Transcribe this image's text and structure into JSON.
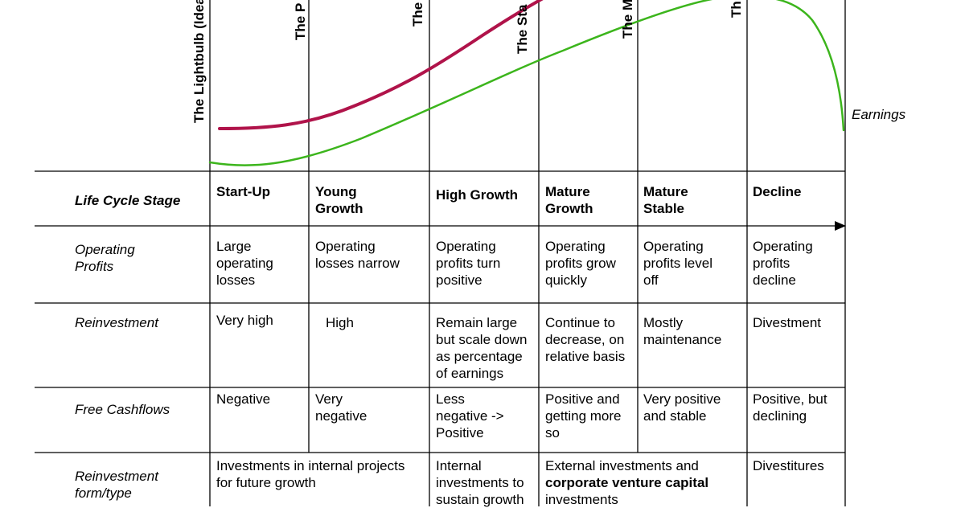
{
  "curves": {
    "earnings_label": "Earnings",
    "revenue_color": "#b0134a",
    "earnings_color": "#3cb51c"
  },
  "stage_labels": [
    "The Lightbulb (Idea)",
    "The P",
    "The",
    "The Sta",
    "The M",
    "Th"
  ],
  "table": {
    "header": {
      "label": "Life Cycle Stage",
      "stages": [
        "Start-Up",
        "Young\nGrowth",
        "High Growth",
        "Mature\nGrowth",
        "Mature\nStable",
        "Decline"
      ]
    },
    "rows": [
      {
        "label": "Operating\nProfits",
        "cells": [
          "Large\noperating\nlosses",
          "Operating\nlosses narrow",
          "Operating\nprofits turn\npositive",
          "Operating\nprofits grow\nquickly",
          "Operating\nprofits level\noff",
          "Operating\nprofits\ndecline"
        ]
      },
      {
        "label": "Reinvestment",
        "cells": [
          "Very high",
          "High",
          "Remain large\nbut scale down\nas percentage\nof earnings",
          "Continue to\ndecrease, on\nrelative basis",
          "Mostly\nmaintenance",
          "Divestment"
        ]
      },
      {
        "label": "Free Cashflows",
        "cells": [
          "Negative",
          "Very\nnegative",
          "Less\nnegative ->\nPositive",
          "Positive and\ngetting more\nso",
          "Very positive\nand stable",
          "Positive, but\ndeclining"
        ]
      },
      {
        "label": "Reinvestment\nform/type",
        "cells": [
          "Investments in internal projects\nfor future growth",
          "Internal\ninvestments to\nsustain growth",
          "External investments and",
          "corporate venture capital",
          "investments",
          "Divestitures"
        ]
      }
    ]
  }
}
